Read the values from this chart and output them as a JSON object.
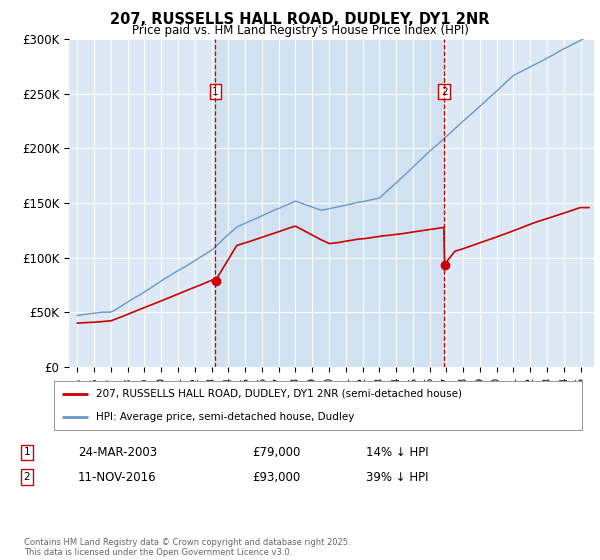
{
  "title": "207, RUSSELLS HALL ROAD, DUDLEY, DY1 2NR",
  "subtitle": "Price paid vs. HM Land Registry's House Price Index (HPI)",
  "legend_line1": "207, RUSSELLS HALL ROAD, DUDLEY, DY1 2NR (semi-detached house)",
  "legend_line2": "HPI: Average price, semi-detached house, Dudley",
  "copyright": "Contains HM Land Registry data © Crown copyright and database right 2025.\nThis data is licensed under the Open Government Licence v3.0.",
  "marker1_date": "24-MAR-2003",
  "marker1_price": "£79,000",
  "marker1_hpi": "14% ↓ HPI",
  "marker2_date": "11-NOV-2016",
  "marker2_price": "£93,000",
  "marker2_hpi": "39% ↓ HPI",
  "ylim": [
    0,
    300000
  ],
  "yticks": [
    0,
    50000,
    100000,
    150000,
    200000,
    250000,
    300000
  ],
  "ytick_labels": [
    "£0",
    "£50K",
    "£100K",
    "£150K",
    "£200K",
    "£250K",
    "£300K"
  ],
  "bg_color": "#dce9f5",
  "plot_bg": "#dce9f5",
  "shade_color": "#c8ddf0",
  "red_color": "#cc0000",
  "blue_color": "#6699cc",
  "marker1_x": 2003.23,
  "marker2_x": 2016.87,
  "marker1_price_val": 79000,
  "marker2_price_val": 93000
}
